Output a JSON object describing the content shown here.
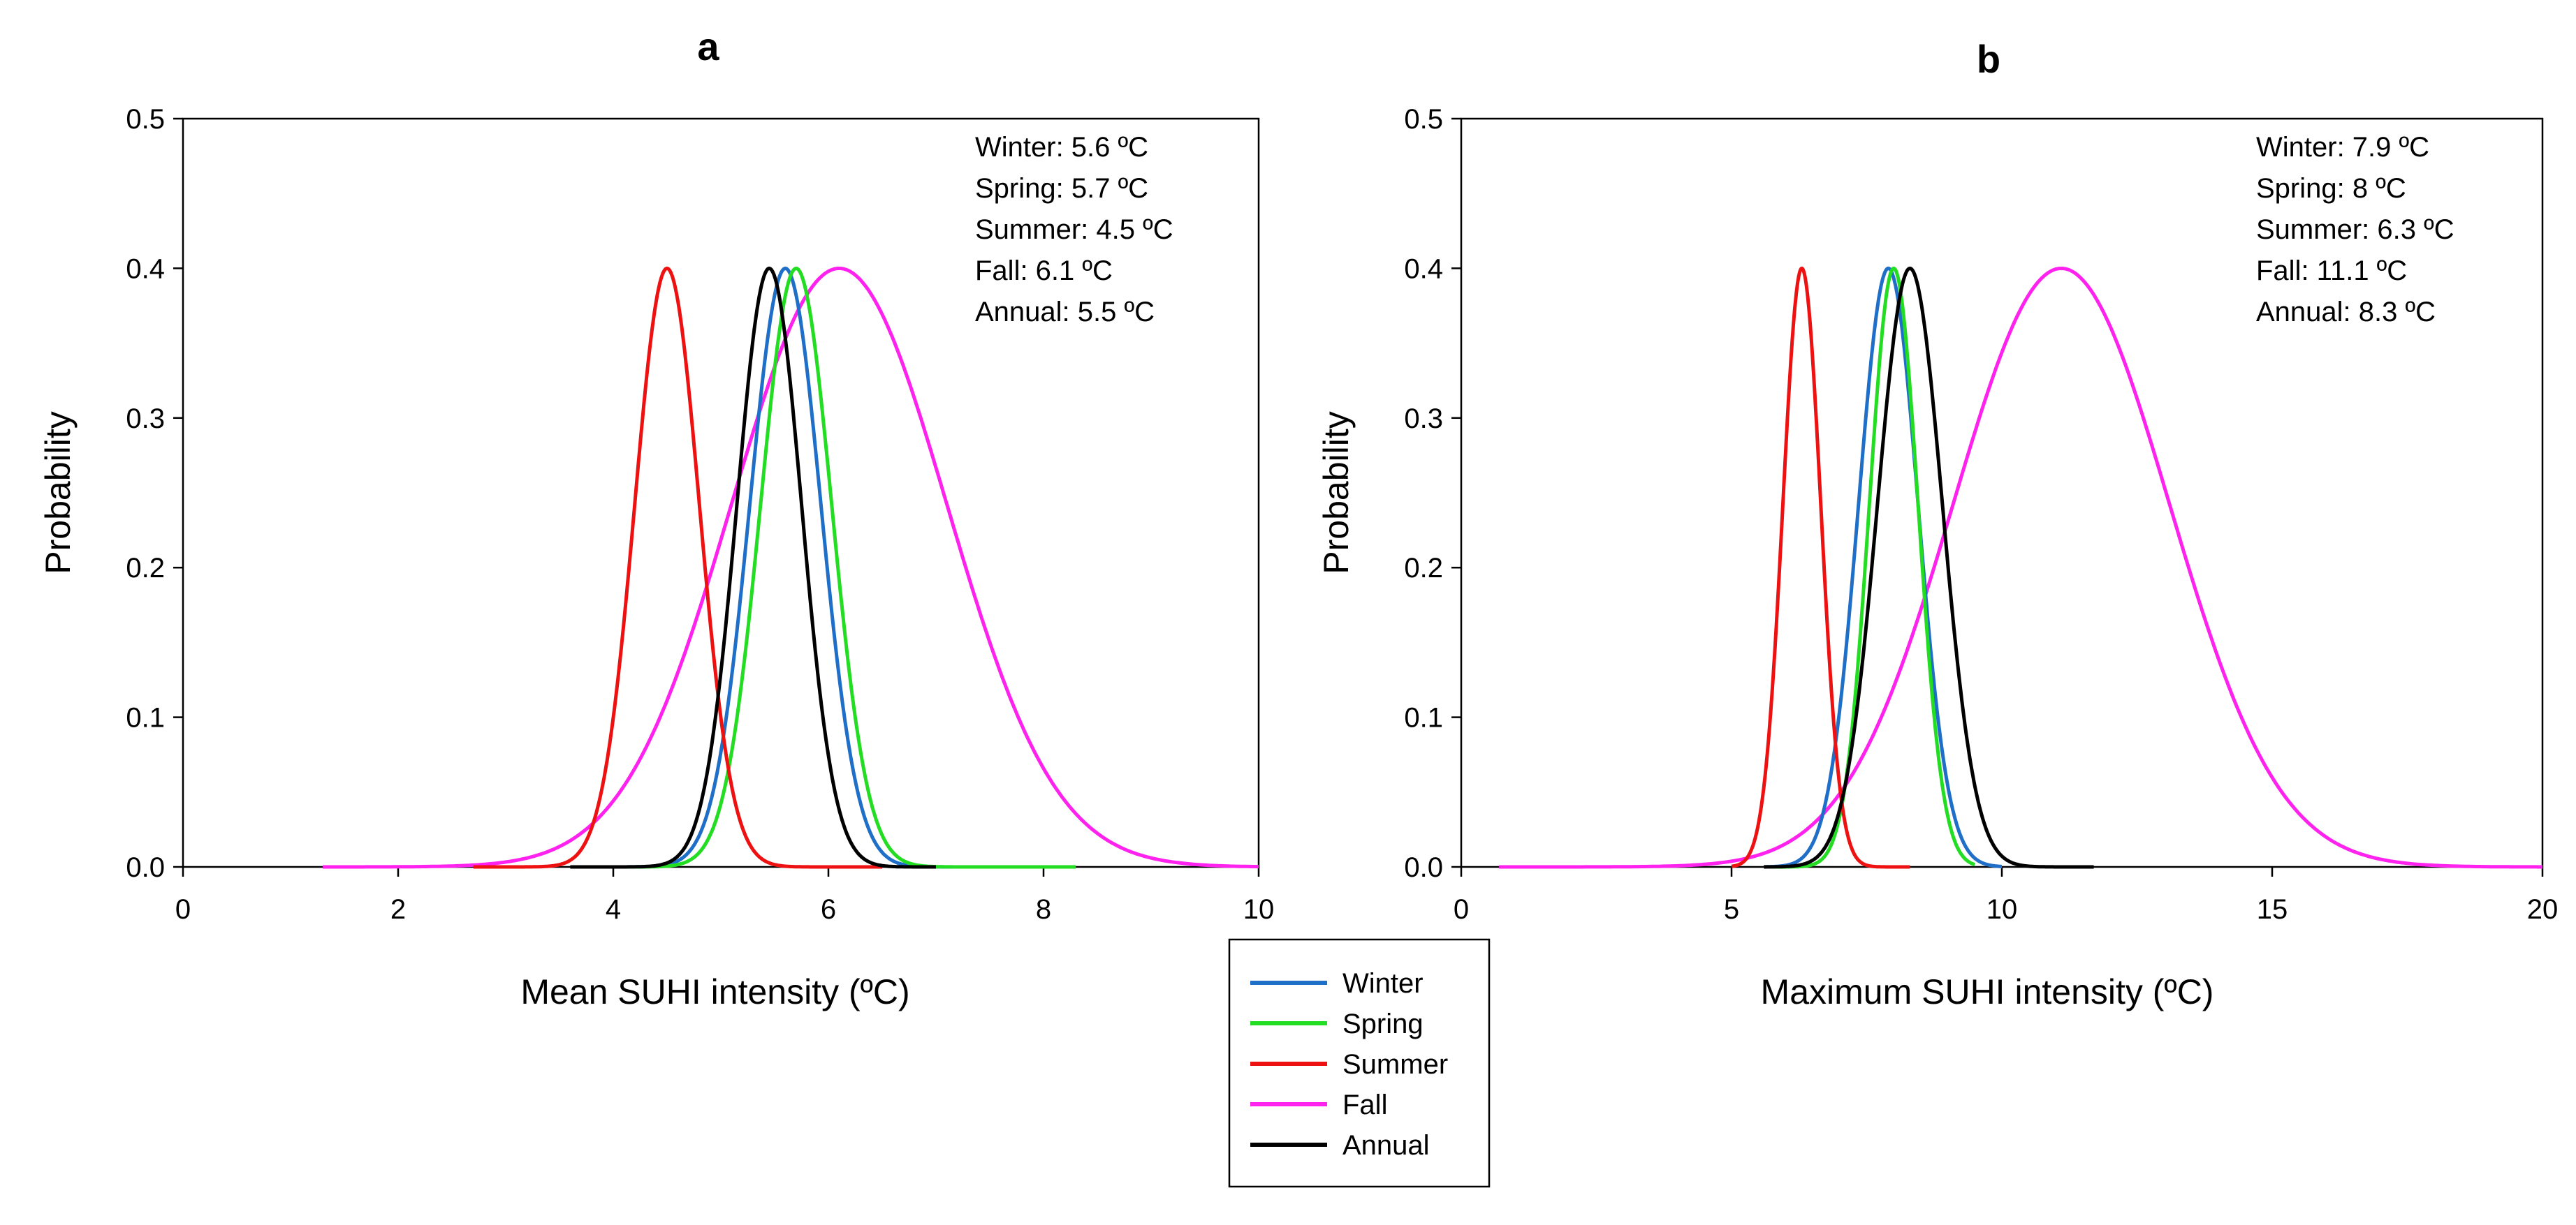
{
  "legend": {
    "entries": [
      {
        "name": "Winter",
        "color": "#1f6fc8"
      },
      {
        "name": "Spring",
        "color": "#22dd22"
      },
      {
        "name": "Summer",
        "color": "#ee1111"
      },
      {
        "name": "Fall",
        "color": "#ff22ee"
      },
      {
        "name": "Annual",
        "color": "#000000"
      }
    ],
    "placement": "bottom-center"
  },
  "chart_data": [
    {
      "type": "line",
      "panel_label": "a",
      "xlabel": "Mean SUHI intensity (ºC)",
      "ylabel": "Probability",
      "xlim": [
        0,
        10
      ],
      "ylim": [
        0,
        0.5
      ],
      "xticks": [
        0,
        2,
        4,
        6,
        8,
        10
      ],
      "xtick_labels": [
        "0",
        "2",
        "4",
        "6",
        "8",
        "10"
      ],
      "yticks": [
        0,
        0.1,
        0.2,
        0.3,
        0.4,
        0.5
      ],
      "ytick_labels": [
        "0.0",
        "0.1",
        "0.2",
        "0.3",
        "0.4",
        "0.5"
      ],
      "grid": false,
      "annotations": [
        "Winter: 5.6 ºC",
        "Spring:  5.7 ºC",
        "Summer:  4.5 ºC",
        "Fall:  6.1 ºC",
        "Annual:  5.5 ºC"
      ],
      "series": [
        {
          "name": "Fall",
          "color": "#ff22ee",
          "mean": 6.1,
          "sd": 1.0,
          "x_range": [
            1.3,
            10.0
          ]
        },
        {
          "name": "Winter",
          "color": "#1f6fc8",
          "mean": 5.6,
          "sd": 0.33,
          "x_range": [
            3.8,
            7.6
          ]
        },
        {
          "name": "Spring",
          "color": "#22dd22",
          "mean": 5.7,
          "sd": 0.33,
          "x_range": [
            3.8,
            8.3
          ]
        },
        {
          "name": "Summer",
          "color": "#ee1111",
          "mean": 4.5,
          "sd": 0.3,
          "x_range": [
            2.7,
            6.5
          ]
        },
        {
          "name": "Annual",
          "color": "#000000",
          "mean": 5.45,
          "sd": 0.3,
          "x_range": [
            3.6,
            7.0
          ]
        }
      ]
    },
    {
      "type": "line",
      "panel_label": "b",
      "xlabel": "Maximum SUHI intensity (ºC)",
      "ylabel": "Probability",
      "xlim": [
        0,
        20
      ],
      "ylim": [
        0,
        0.5
      ],
      "xticks": [
        0,
        5,
        10,
        15,
        20
      ],
      "xtick_labels": [
        "0",
        "5",
        "10",
        "15",
        "20"
      ],
      "yticks": [
        0,
        0.1,
        0.2,
        0.3,
        0.4,
        0.5
      ],
      "ytick_labels": [
        "0.0",
        "0.1",
        "0.2",
        "0.3",
        "0.4",
        "0.5"
      ],
      "grid": false,
      "annotations": [
        "Winter: 7.9 ºC",
        "Spring:  8 ºC",
        "Summer:  6.3 ºC",
        "Fall:  11.1 ºC",
        "Annual:  8.3 ºC"
      ],
      "series": [
        {
          "name": "Fall",
          "color": "#ff22ee",
          "mean": 11.1,
          "sd": 2.0,
          "x_range": [
            0.7,
            20.0
          ]
        },
        {
          "name": "Winter",
          "color": "#1f6fc8",
          "mean": 7.9,
          "sd": 0.55,
          "x_range": [
            5.6,
            10.0
          ]
        },
        {
          "name": "Spring",
          "color": "#22dd22",
          "mean": 8.0,
          "sd": 0.45,
          "x_range": [
            5.7,
            9.5
          ]
        },
        {
          "name": "Summer",
          "color": "#ee1111",
          "mean": 6.3,
          "sd": 0.35,
          "x_range": [
            5.0,
            8.3
          ]
        },
        {
          "name": "Annual",
          "color": "#000000",
          "mean": 8.3,
          "sd": 0.6,
          "x_range": [
            5.6,
            11.7
          ]
        }
      ]
    }
  ]
}
